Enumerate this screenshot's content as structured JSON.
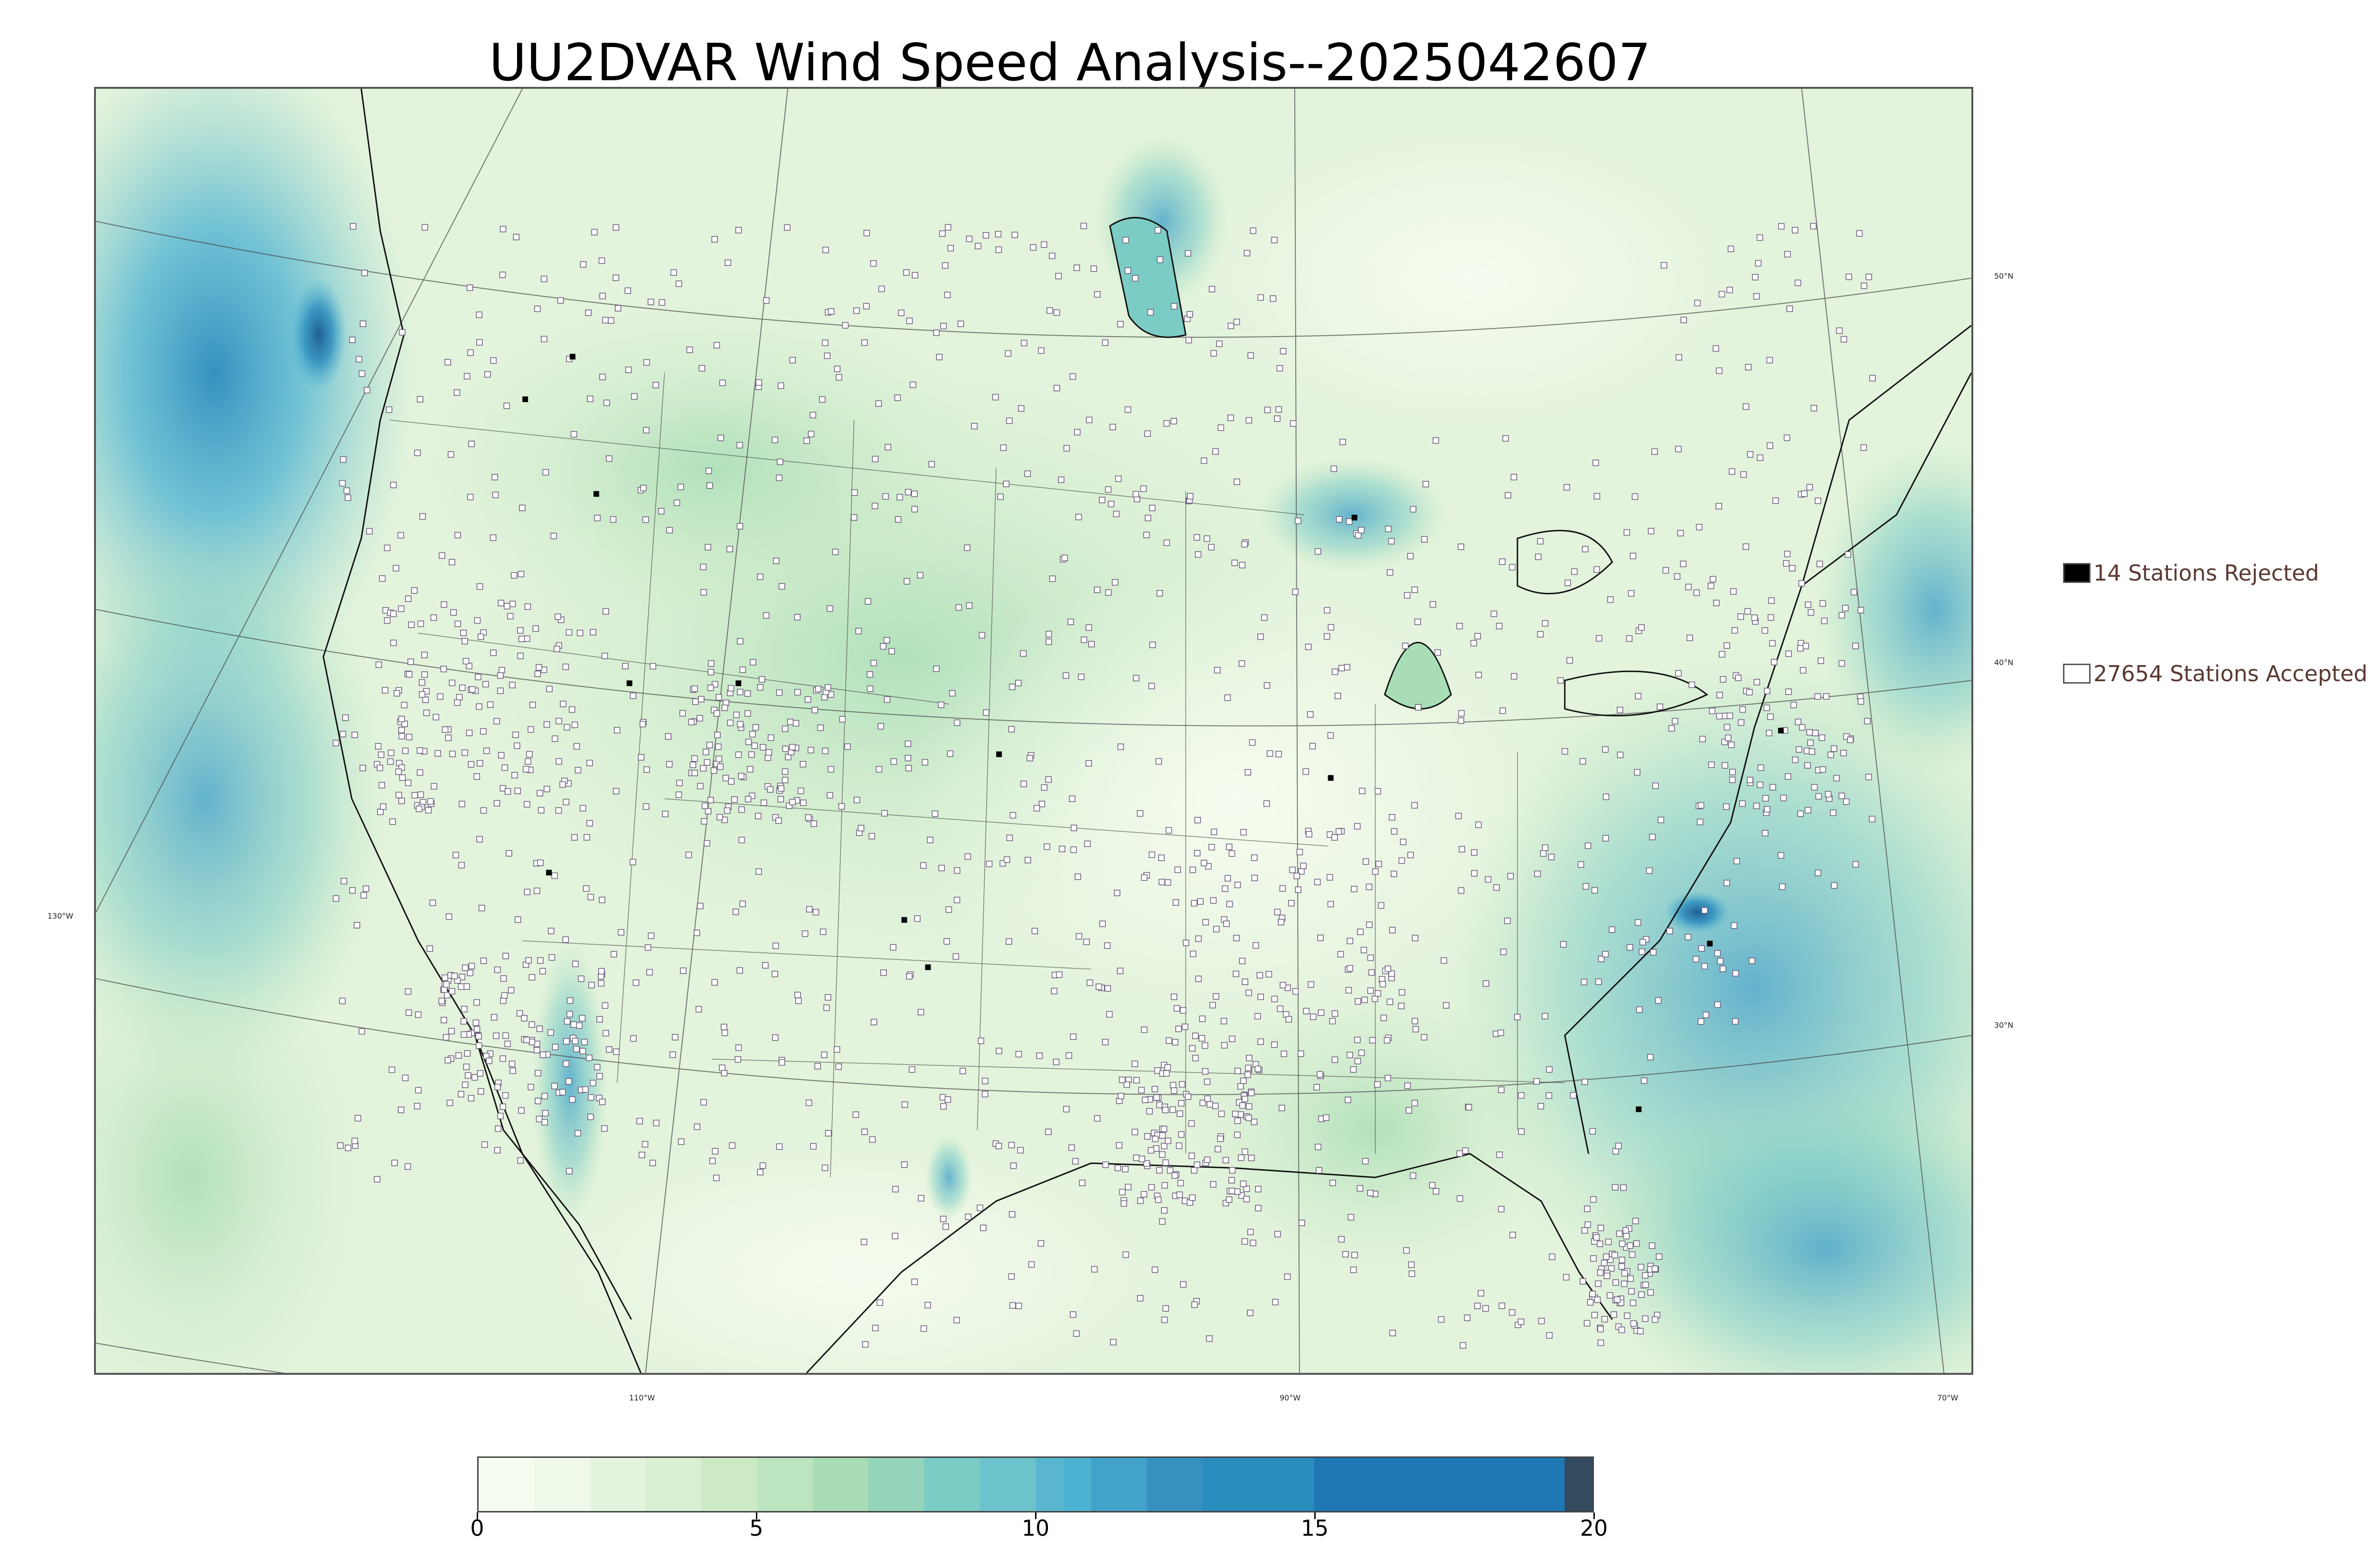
{
  "title": "UU2DVAR Wind Speed Analysis--2025042607",
  "legend": {
    "rejected_label": "14 Stations Rejected",
    "accepted_label": "27654 Stations Accepted",
    "rejected_color": "#000000",
    "accepted_color": "#ffffff"
  },
  "graticule_labels": {
    "lon_130": "130°W",
    "lon_110": "110°W",
    "lon_90": "90°W",
    "lon_70": "70°W",
    "lat_50": "50°N",
    "lat_40": "40°N",
    "lat_30": "30°N"
  },
  "colorbar": {
    "min": 0,
    "max": 20,
    "ticks": [
      "0",
      "5",
      "10",
      "15",
      "20"
    ],
    "levels": [
      0,
      1,
      2,
      3,
      4,
      5,
      6,
      7,
      8,
      9,
      10,
      10.5,
      11,
      12,
      13,
      15,
      19.5,
      20
    ],
    "colors": [
      "#f7fcf0",
      "#eef9ea",
      "#e4f5df",
      "#d9f0d3",
      "#ccebc5",
      "#bde5bf",
      "#a8ddb5",
      "#93d4ba",
      "#7bccc4",
      "#6cc3cb",
      "#5ab6d0",
      "#4eb3d3",
      "#43a2ca",
      "#3691c0",
      "#2b8cbe",
      "#1f78b4",
      "#344a5e"
    ]
  },
  "station_counts": {
    "rejected": 14,
    "accepted": 27654
  }
}
